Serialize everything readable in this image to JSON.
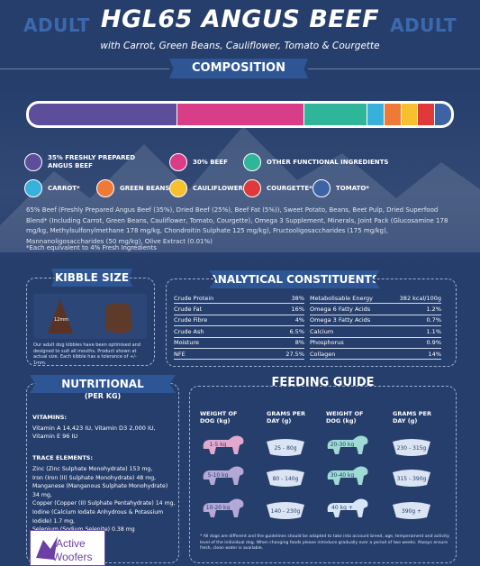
{
  "header": {
    "corner_left": "ADULT",
    "corner_right": "ADULT",
    "title": "HGL65 ANGUS BEEF",
    "subtitle": "with Carrot, Green Beans, Cauliflower, Tomato & Courgette"
  },
  "composition": {
    "heading": "COMPOSITION",
    "bar": [
      {
        "label": "35% FRESHLY PREPARED ANGUS BEEF",
        "share": 35,
        "color": "#5c4e9a"
      },
      {
        "label": "30% BEEF",
        "share": 30,
        "color": "#d93d87"
      },
      {
        "label": "OTHER FUNCTIONAL INGREDIENTS",
        "share": 15,
        "color": "#2fb59a"
      },
      {
        "label": "CARROT*",
        "share": 4,
        "color": "#37b0dc"
      },
      {
        "label": "GREEN BEANS*",
        "share": 4,
        "color": "#ef7a37"
      },
      {
        "label": "CAULIFLOWER*",
        "share": 4,
        "color": "#f7c02f"
      },
      {
        "label": "COURGETTE*",
        "share": 4,
        "color": "#e0393c"
      },
      {
        "label": "TOMATO*",
        "share": 4,
        "color": "#3d63a6"
      }
    ],
    "legend": {
      "beef_fresh": "35% FRESHLY PREPARED ANGUS BEEF",
      "beef": "30% BEEF",
      "other": "OTHER FUNCTIONAL INGREDIENTS",
      "carrot": "CARROT*",
      "green_beans": "GREEN BEANS*",
      "cauliflower": "CAULIFLOWER*",
      "courgette": "COURGETTE*",
      "tomato": "TOMATO*"
    },
    "ingredients": "65% Beef (Freshly Prepared Angus Beef (35%), Dried Beef (25%), Beef Fat (5%)), Sweet Potato, Beans, Beet Pulp, Dried Superfood Blend* (Including Carrot, Green Beans, Cauliflower, Tomato, Courgette), Omega 3 Supplement, Minerals, Joint Pack (Glucosamine 178 mg/kg, Methylsulfonylmethane 178 mg/kg, Chondroitin Sulphate 125 mg/kg), Fructooligosaccharides (175 mg/kg), Mannanoligosaccharides (50 mg/kg), Olive Extract (0.01%)",
    "footnote": "*Each equivalent to 4% Fresh Ingredients"
  },
  "kibble": {
    "heading": "KIBBLE SIZE",
    "size_label": "12mm",
    "note": "Our adult dog kibbles have been optimised and designed to suit all mouths. Product shown at actual size. Each kibble has a tolerance of +/- 1mm."
  },
  "analytical": {
    "heading": "ANALYTICAL CONSTITUENTS",
    "left": [
      {
        "k": "Crude Protein",
        "v": "38%"
      },
      {
        "k": "Crude Fat",
        "v": "16%"
      },
      {
        "k": "Crude Fibre",
        "v": "4%"
      },
      {
        "k": "Crude Ash",
        "v": "6.5%"
      },
      {
        "k": "Moisture",
        "v": "8%"
      },
      {
        "k": "NFE",
        "v": "27.5%"
      }
    ],
    "right": [
      {
        "k": "Metabolisable Energy",
        "v": "382 kcal/100g"
      },
      {
        "k": "Omega 6 Fatty Acids",
        "v": "1.2%"
      },
      {
        "k": "Omega 3 Fatty Acids",
        "v": "0.7%"
      },
      {
        "k": "Calcium",
        "v": "1.1%"
      },
      {
        "k": "Phosphorus",
        "v": "0.9%"
      },
      {
        "k": "Collagen",
        "v": "14%"
      }
    ]
  },
  "additives": {
    "heading": "NUTRITIONAL ADDITIVES",
    "subheading": "(PER KG)",
    "vitamins_title": "VITAMINS:",
    "vitamins": "Vitamin A 14,423 IU, Vitamin D3 2,000 IU, Vitamin E 96 IU",
    "trace_title": "TRACE ELEMENTS:",
    "trace": [
      "Zinc (Zinc Sulphate Monohydrate) 153 mg,",
      "Iron (Iron (II) Sulphate Monohydrate) 48 mg,",
      "Manganese (Manganous Sulphate Monohydrate) 34 mg,",
      "Copper (Copper (II) Sulphate Pentahydrate) 14 mg,",
      "Iodine (Calcium Iodate Anhydrous & Potassium Iodide) 1.7 mg,",
      "Selenium (Sodium Selenite) 0.38 mg"
    ]
  },
  "logo": {
    "line1": "Active",
    "line2": "Woofers"
  },
  "feeding": {
    "heading": "FEEDING GUIDE",
    "col_weight": "WEIGHT OF DOG (kg)",
    "col_grams": "GRAMS PER DAY (g)",
    "rows": [
      {
        "w1": "1-5 kg",
        "g1": "25 - 80g",
        "w2": "20-30 kg",
        "g2": "230 - 315g"
      },
      {
        "w1": "5-10 kg",
        "g1": "80 - 140g",
        "w2": "30-40 kg",
        "g2": "315 - 390g"
      },
      {
        "w1": "10-20 kg",
        "g1": "140 - 230g",
        "w2": "40 kg +",
        "g2": "390g +"
      }
    ],
    "note": "* All dogs are different and the guidelines should be adapted to take into account breed, age, temperament and activity level of the individual dog. When changing foods please introduce gradually over a period of two weeks. Always ensure fresh, clean water is available."
  },
  "colors": {
    "background": "#263e6c",
    "banner": "#2e5695",
    "dog_pink": "#e2a9cf",
    "dog_purple": "#b4a9d6",
    "dog_teal": "#9fdbd4",
    "dog_light": "#d7e6f7"
  }
}
